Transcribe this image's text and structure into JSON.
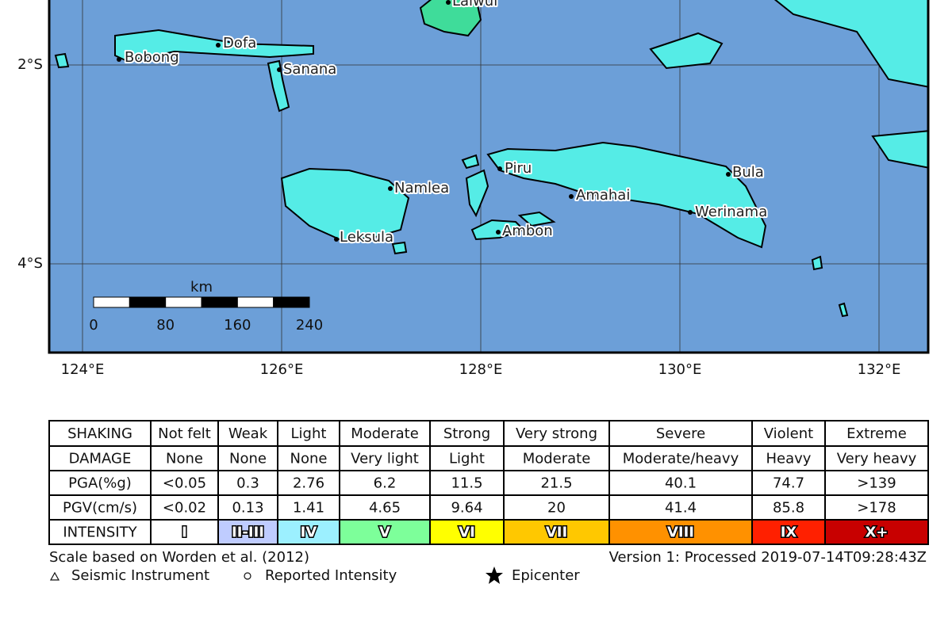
{
  "map": {
    "lat_labels": [
      "2°S",
      "4°S"
    ],
    "lon_labels": [
      "124°E",
      "126°E",
      "128°E",
      "130°E",
      "132°E"
    ],
    "places": [
      "Laiwui",
      "Dofa",
      "Bobong",
      "Sanana",
      "Piru",
      "Bula",
      "Namlea",
      "Amahai",
      "Werinama",
      "Ambon",
      "Leksula"
    ]
  },
  "scale_bar": {
    "unit": "km",
    "ticks": [
      0,
      80,
      160,
      240
    ]
  },
  "legend": {
    "rows": [
      [
        "SHAKING",
        "Not felt",
        "Weak",
        "Light",
        "Moderate",
        "Strong",
        "Very strong",
        "Severe",
        "Violent",
        "Extreme"
      ],
      [
        "DAMAGE",
        "None",
        "None",
        "None",
        "Very light",
        "Light",
        "Moderate",
        "Moderate/heavy",
        "Heavy",
        "Very heavy"
      ],
      [
        "PGA(%g)",
        "<0.05",
        "0.3",
        "2.76",
        "6.2",
        "11.5",
        "21.5",
        "40.1",
        "74.7",
        ">139"
      ],
      [
        "PGV(cm/s)",
        "<0.02",
        "0.13",
        "1.41",
        "4.65",
        "9.64",
        "20",
        "41.4",
        "85.8",
        ">178"
      ],
      [
        "INTENSITY",
        "I",
        "II-III",
        "IV",
        "V",
        "VI",
        "VII",
        "VIII",
        "IX",
        "X+"
      ]
    ]
  },
  "footer": {
    "scale_note": "Scale based on Worden et al. (2012)",
    "version": "Version 1: Processed 2019-07-14T09:28:43Z",
    "symbols": [
      "Seismic Instrument",
      "Reported Intensity",
      "Epicenter"
    ]
  }
}
